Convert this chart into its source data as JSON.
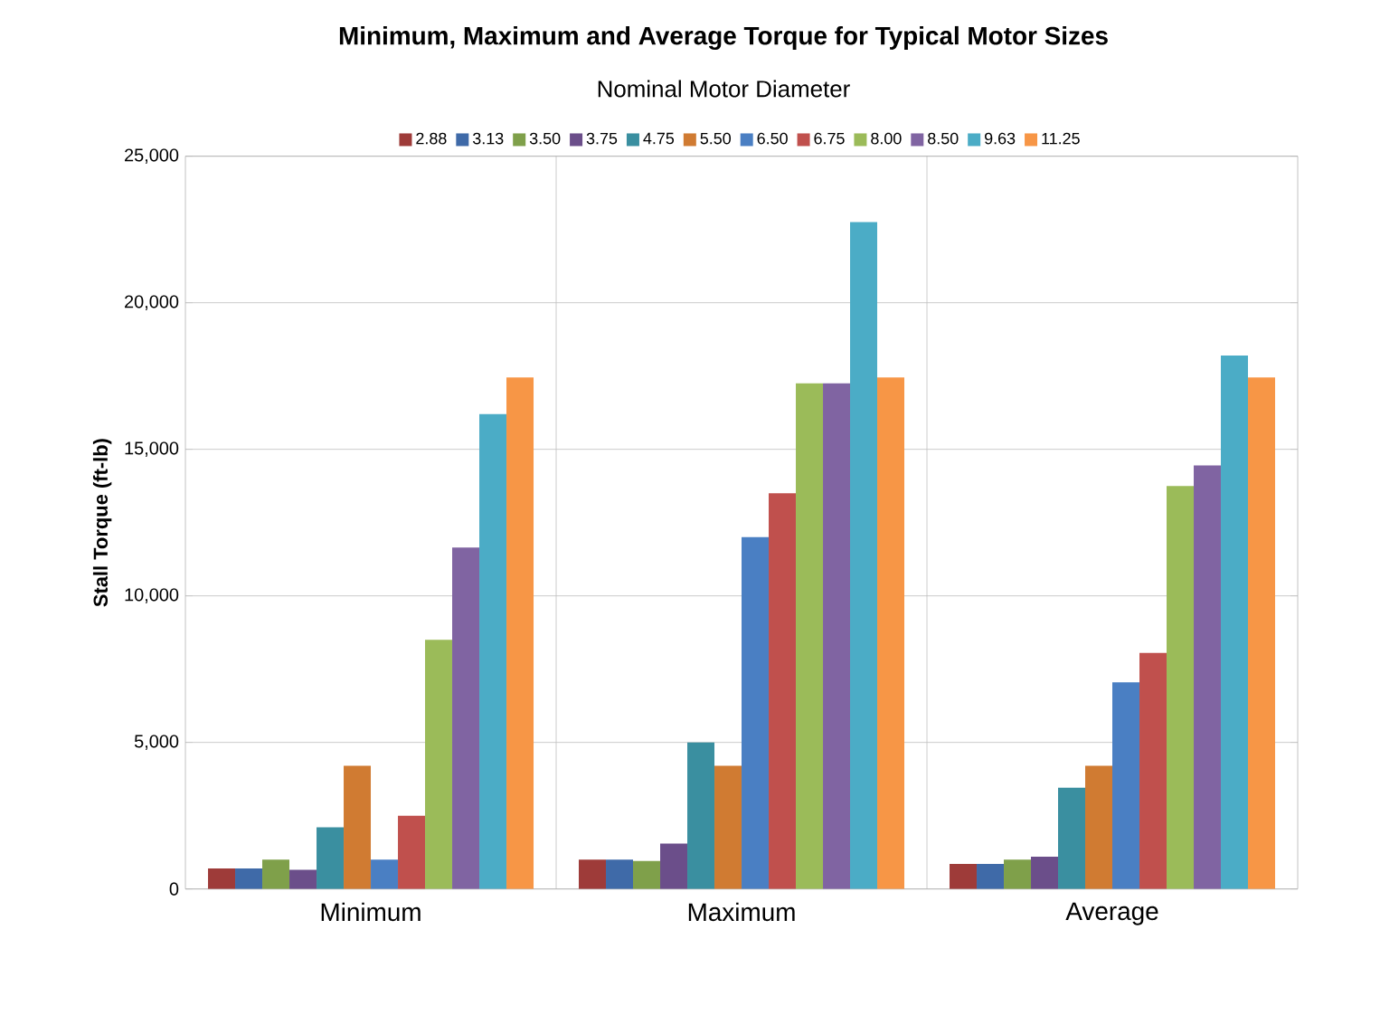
{
  "chart_data": {
    "type": "bar",
    "title": "Minimum, Maximum and Average Torque for Typical Motor Sizes",
    "legend_title": "Nominal Motor Diameter",
    "ylabel": "Stall Torque  (ft-lb)",
    "categories": [
      "Minimum",
      "Maximum",
      "Average"
    ],
    "series": [
      {
        "name": "2.88",
        "color": "#9e3b39",
        "values": [
          700,
          1000,
          850
        ]
      },
      {
        "name": "3.13",
        "color": "#3f6aa8",
        "values": [
          700,
          1000,
          850
        ]
      },
      {
        "name": "3.50",
        "color": "#7fa04a",
        "values": [
          1000,
          950,
          1000
        ]
      },
      {
        "name": "3.75",
        "color": "#6b4e8a",
        "values": [
          650,
          1550,
          1100
        ]
      },
      {
        "name": "4.75",
        "color": "#3a8fa0",
        "values": [
          2100,
          5000,
          3450
        ]
      },
      {
        "name": "5.50",
        "color": "#d07b32",
        "values": [
          4200,
          4200,
          4200
        ]
      },
      {
        "name": "6.50",
        "color": "#4a7fc3",
        "values": [
          1000,
          12000,
          7050
        ]
      },
      {
        "name": "6.75",
        "color": "#c0504d",
        "values": [
          2500,
          13500,
          8050
        ]
      },
      {
        "name": "8.00",
        "color": "#9bbb59",
        "values": [
          8500,
          17250,
          13750
        ]
      },
      {
        "name": "8.50",
        "color": "#8064a2",
        "values": [
          11650,
          17250,
          14450
        ]
      },
      {
        "name": "9.63",
        "color": "#4bacc6",
        "values": [
          16200,
          22750,
          18200
        ]
      },
      {
        "name": "11.25",
        "color": "#f79646",
        "values": [
          17450,
          17450,
          17450
        ]
      }
    ],
    "ylim": [
      0,
      25000
    ],
    "yticks": [
      {
        "value": 0,
        "label": "0"
      },
      {
        "value": 5000,
        "label": "5,000"
      },
      {
        "value": 10000,
        "label": "10,000"
      },
      {
        "value": 15000,
        "label": "15,000"
      },
      {
        "value": 20000,
        "label": "20,000"
      },
      {
        "value": 25000,
        "label": "25,000"
      }
    ],
    "grid": true,
    "legend": "top"
  }
}
